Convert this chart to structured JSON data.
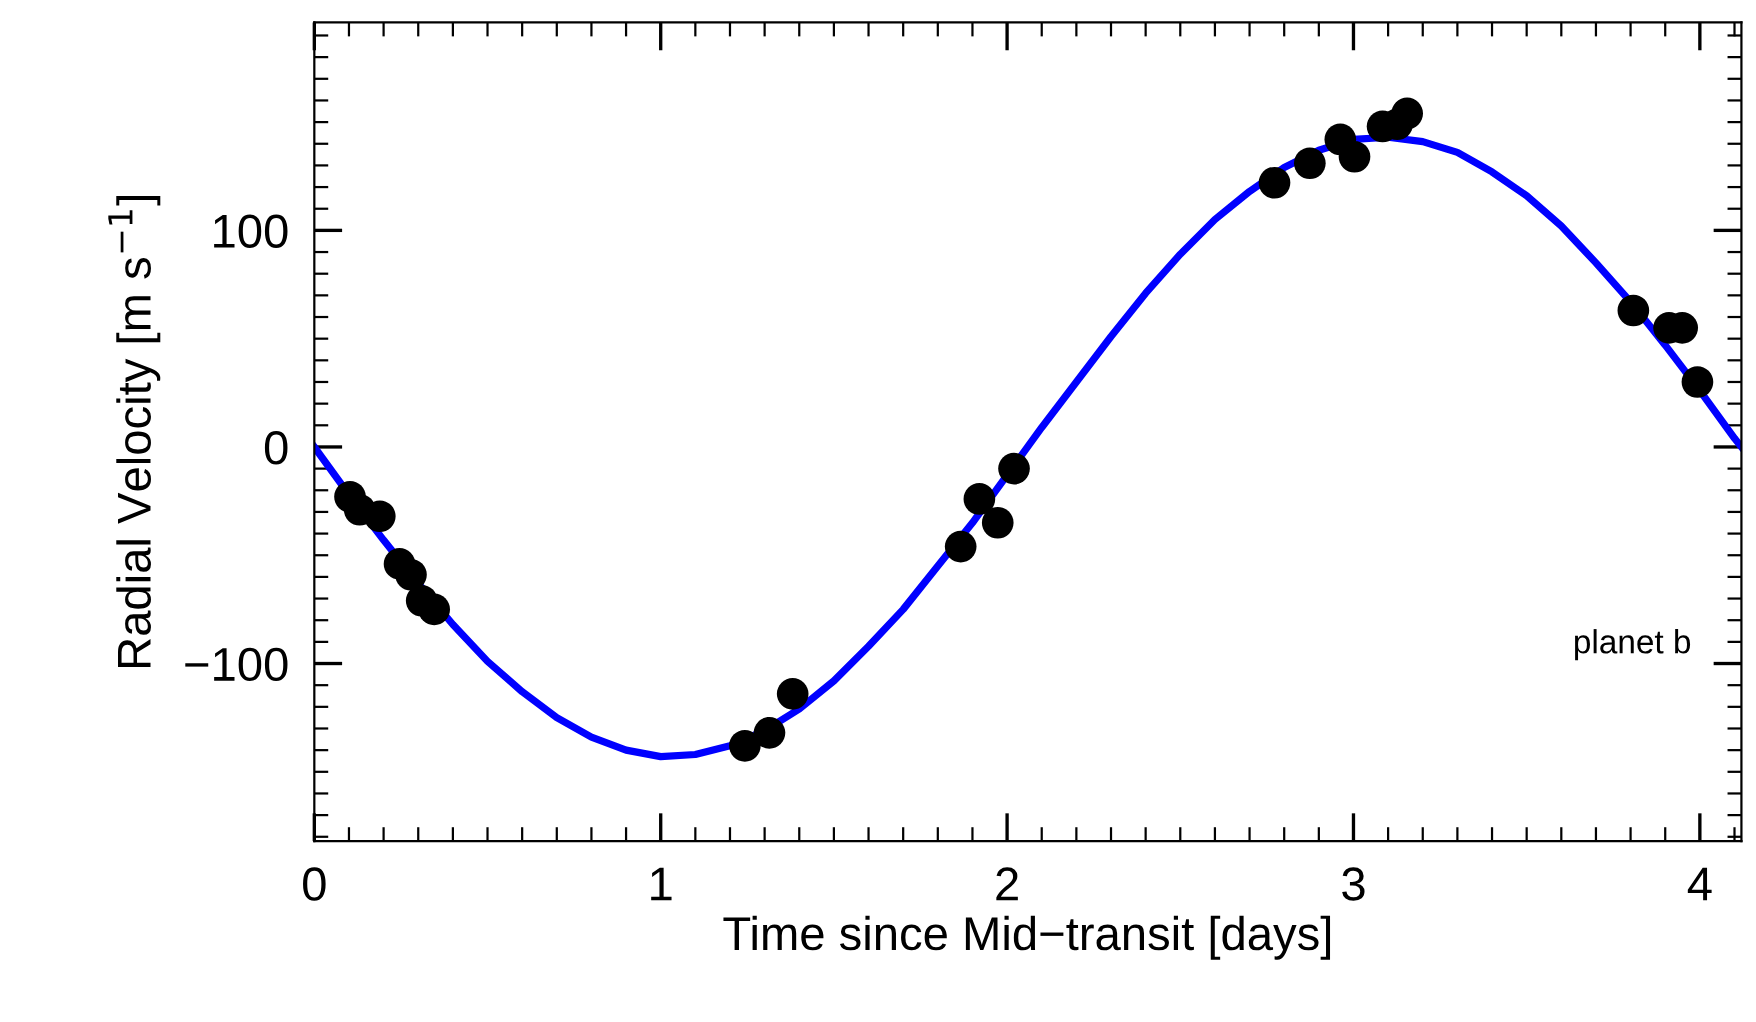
{
  "chart_data": {
    "type": "scatter",
    "xlabel": "Time since Mid−transit [days]",
    "ylabel": "Radial Velocity [m s$^{−1}$]",
    "xlim": [
      0,
      4.12
    ],
    "ylim": [
      -182,
      196
    ],
    "xticks": [
      0,
      1,
      2,
      3,
      4
    ],
    "yticks": [
      {
        "value": -100,
        "label": "−100"
      },
      0,
      100
    ],
    "grid": false,
    "legend": false,
    "annotations": [
      "planet b"
    ],
    "series": [
      {
        "color": "#000000",
        "marker": "circle",
        "x": [
          0.103,
          0.131,
          0.189,
          0.246,
          0.279,
          0.31,
          0.346,
          1.243,
          1.314,
          1.381,
          1.866,
          1.92,
          1.973,
          2.02,
          2.772,
          2.874,
          2.962,
          3.003,
          3.084,
          3.126,
          3.155,
          3.808,
          3.911,
          3.949,
          3.993
        ],
        "values": [
          -23,
          -29,
          -32,
          -54,
          -59,
          -71,
          -75,
          -138,
          -132,
          -114,
          -46,
          -24,
          -35,
          -10,
          122,
          131,
          142,
          134,
          148,
          149,
          154,
          63,
          55,
          55,
          30
        ]
      },
      {
        "type": "line",
        "color": "#0000ff",
        "marker": "none",
        "line_style": "solid",
        "x": [
          0,
          0.1,
          0.2,
          0.3,
          0.4,
          0.5,
          0.6,
          0.7,
          0.8,
          0.9,
          1.0,
          1.1,
          1.2,
          1.3,
          1.4,
          1.5,
          1.6,
          1.7,
          1.8,
          1.9,
          2.0,
          2.1,
          2.2,
          2.3,
          2.4,
          2.5,
          2.6,
          2.7,
          2.8,
          2.9,
          3.0,
          3.1,
          3.2,
          3.3,
          3.4,
          3.5,
          3.6,
          3.7,
          3.8,
          3.9,
          4.0,
          4.1,
          4.12
        ],
        "values": [
          0,
          -22,
          -43,
          -63,
          -82,
          -99,
          -113,
          -125,
          -134,
          -140,
          -143,
          -142,
          -138,
          -131,
          -121,
          -108,
          -92,
          -75,
          -55,
          -35,
          -13,
          9,
          30,
          51,
          71,
          89,
          105,
          118,
          129,
          137,
          142,
          143,
          141,
          136,
          127,
          116,
          102,
          85,
          67,
          47,
          26,
          4,
          0
        ]
      }
    ]
  }
}
